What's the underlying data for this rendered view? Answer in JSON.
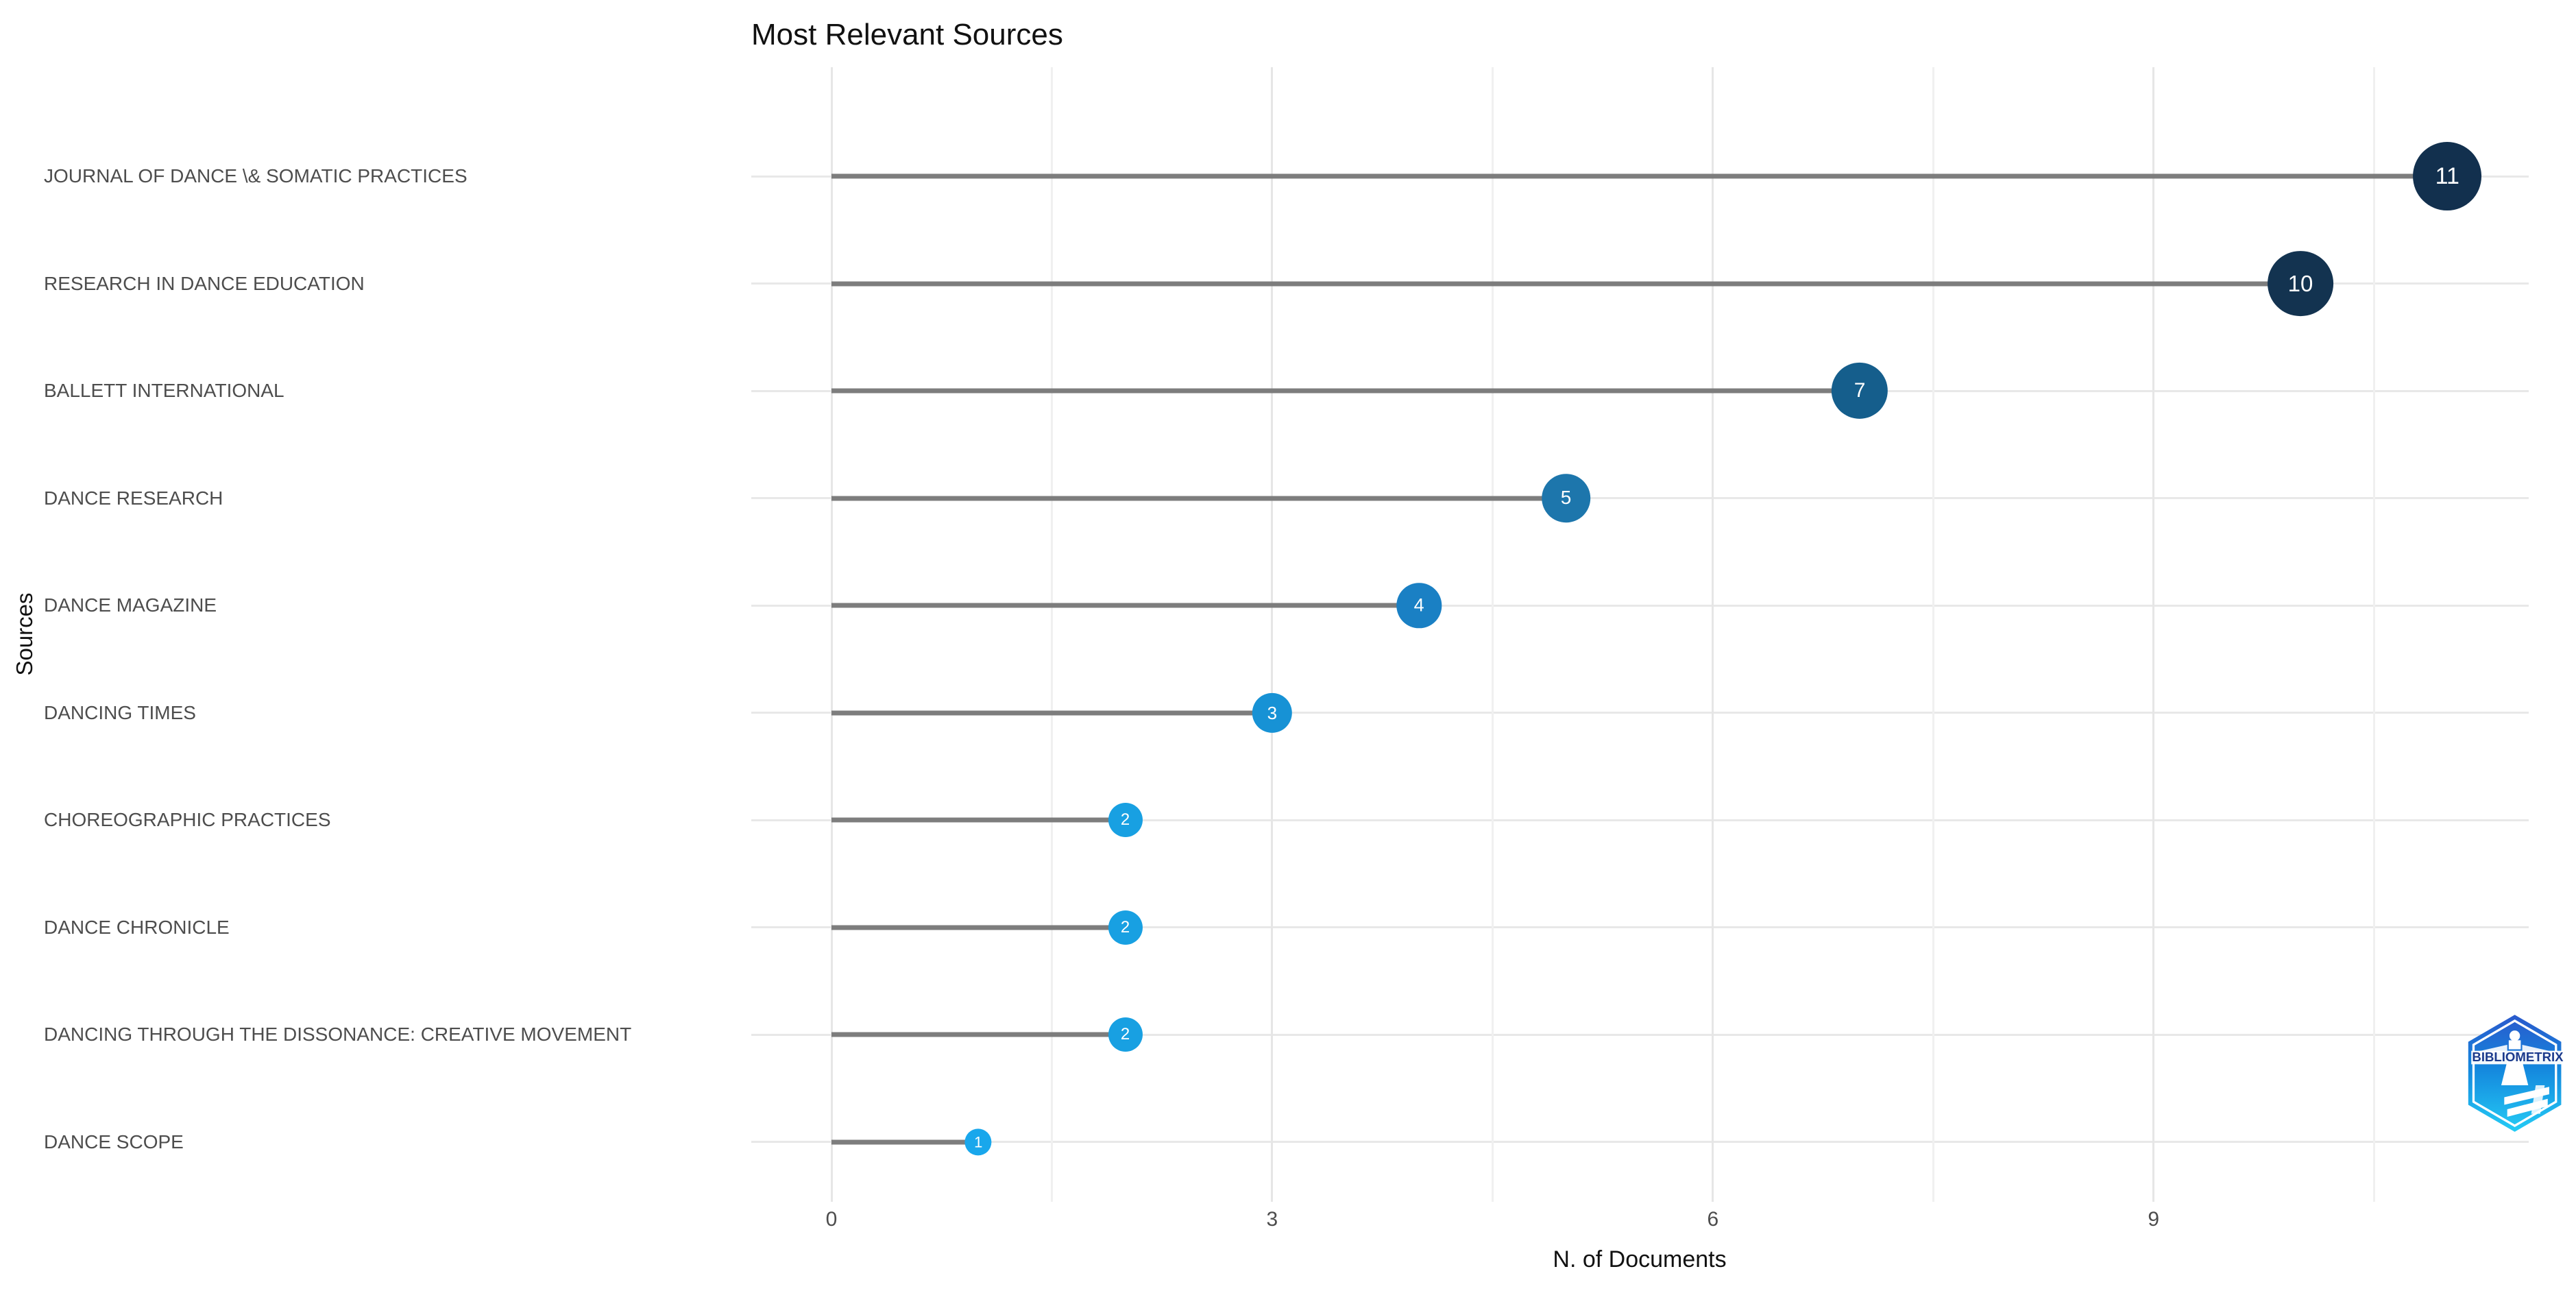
{
  "page": {
    "background": "#ffffff"
  },
  "title": "Most Relevant Sources",
  "axes": {
    "y_title": "Sources",
    "x_title": "N. of Documents",
    "x_tick_labels": [
      "0",
      "3",
      "6",
      "9"
    ]
  },
  "chart_data": {
    "type": "lollipop",
    "orientation": "horizontal",
    "title": "Most Relevant Sources",
    "xlabel": "N. of Documents",
    "ylabel": "Sources",
    "xlim": [
      -0.55,
      11.55
    ],
    "x_major_ticks": [
      0,
      3,
      6,
      9
    ],
    "x_minor_gridlines": [
      1.5,
      4.5,
      7.5,
      10.5
    ],
    "grid": true,
    "legend": false,
    "categories": [
      "JOURNAL OF DANCE \\& SOMATIC PRACTICES",
      "RESEARCH IN DANCE EDUCATION",
      "BALLETT INTERNATIONAL",
      "DANCE RESEARCH",
      "DANCE MAGAZINE",
      "DANCING TIMES",
      "CHOREOGRAPHIC PRACTICES",
      "DANCE CHRONICLE",
      "DANCING THROUGH THE DISSONANCE: CREATIVE MOVEMENT",
      "DANCE SCOPE"
    ],
    "values": [
      11,
      10,
      7,
      5,
      4,
      3,
      2,
      2,
      2,
      1
    ],
    "point_colors": [
      "#12304e",
      "#133350",
      "#155e8c",
      "#1d76ac",
      "#1a80c4",
      "#1792d5",
      "#18a0e2",
      "#18a0e2",
      "#18a0e2",
      "#19a7ec"
    ],
    "point_label_color": "#ffffff",
    "stem_color": "#7d7d7d",
    "row_grid_color": "#e8e8e8",
    "major_grid_color": "#e6e6e6",
    "minor_grid_color": "#f0f0f0",
    "axis_text_color": "#4d4d4d"
  },
  "logo": {
    "label": "bibliometrix-logo",
    "text": "BIBLIOMETRIX",
    "hex_top": "#2a59cc",
    "hex_mid": "#1486dd",
    "hex_bottom": "#24ccf5",
    "band_color": "#ffffff",
    "text_color": "#1b3a8c"
  }
}
